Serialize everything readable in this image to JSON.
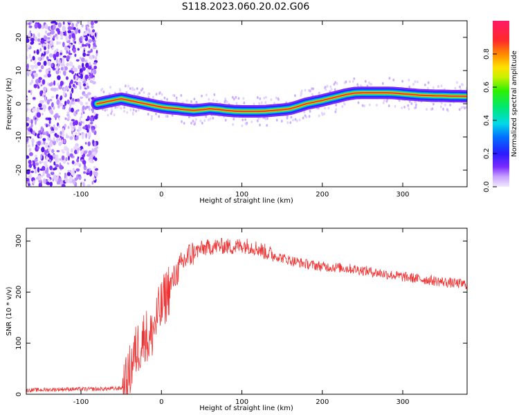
{
  "figure": {
    "title": "S118.2023.060.20.02.G06"
  },
  "chart_data": [
    {
      "type": "heatmap",
      "title": "",
      "xlabel": "Height of straight line (km)",
      "ylabel": "Frequency (Hz)",
      "xlim": [
        -168,
        380
      ],
      "ylim": [
        -25,
        25
      ],
      "xticks": [
        -100,
        0,
        100,
        200,
        300
      ],
      "yticks": [
        -20,
        -10,
        0,
        10,
        20
      ],
      "noise_region_x": [
        -168,
        -80
      ],
      "ridge": {
        "name": "Doppler frequency ridge",
        "x": [
          -80,
          -70,
          -60,
          -50,
          -40,
          -30,
          -20,
          -10,
          0,
          10,
          20,
          30,
          40,
          50,
          60,
          70,
          80,
          90,
          100,
          110,
          120,
          130,
          140,
          150,
          160,
          170,
          180,
          190,
          200,
          210,
          220,
          230,
          240,
          250,
          260,
          270,
          280,
          290,
          300,
          310,
          320,
          330,
          340,
          350,
          360,
          370,
          380
        ],
        "y": [
          0,
          0.5,
          1.0,
          1.5,
          1.0,
          0.5,
          0.0,
          -0.5,
          -1.0,
          -1.3,
          -1.5,
          -1.8,
          -2.0,
          -1.8,
          -1.5,
          -1.7,
          -2.0,
          -2.2,
          -2.3,
          -2.3,
          -2.3,
          -2.2,
          -2.0,
          -1.8,
          -1.5,
          -0.8,
          0,
          0.5,
          1.0,
          1.6,
          2.2,
          2.8,
          3.2,
          3.3,
          3.3,
          3.3,
          3.3,
          3.2,
          3.0,
          2.8,
          2.6,
          2.5,
          2.4,
          2.4,
          2.3,
          2.3,
          2.2
        ]
      },
      "colorbar": {
        "label": "Normalized spectral amplitude",
        "range": [
          0,
          1
        ],
        "ticks": [
          "0.0",
          "0.2",
          "0.4",
          "0.6",
          "0.8"
        ]
      }
    },
    {
      "type": "line",
      "title": "",
      "xlabel": "Height of straight line (km)",
      "ylabel": "SNR (10 * v/v)",
      "xlim": [
        -168,
        380
      ],
      "ylim": [
        0,
        325
      ],
      "xticks": [
        -100,
        0,
        100,
        200,
        300
      ],
      "yticks": [
        0,
        100,
        200,
        300
      ],
      "series": [
        {
          "name": "SNR",
          "color": "#ee3333",
          "x": [
            -168,
            -140,
            -120,
            -100,
            -80,
            -60,
            -50,
            -45,
            -40,
            -35,
            -30,
            -25,
            -20,
            -15,
            -10,
            -5,
            0,
            5,
            10,
            20,
            30,
            40,
            50,
            60,
            70,
            80,
            90,
            100,
            110,
            120,
            130,
            140,
            160,
            180,
            200,
            220,
            240,
            260,
            280,
            300,
            320,
            340,
            360,
            380
          ],
          "values": [
            8,
            9,
            10,
            10,
            10,
            11,
            12,
            14,
            40,
            70,
            90,
            100,
            120,
            100,
            130,
            150,
            170,
            190,
            210,
            240,
            265,
            278,
            285,
            288,
            290,
            290,
            288,
            292,
            290,
            285,
            278,
            272,
            262,
            255,
            250,
            248,
            245,
            240,
            235,
            230,
            226,
            222,
            218,
            215
          ]
        }
      ]
    }
  ]
}
